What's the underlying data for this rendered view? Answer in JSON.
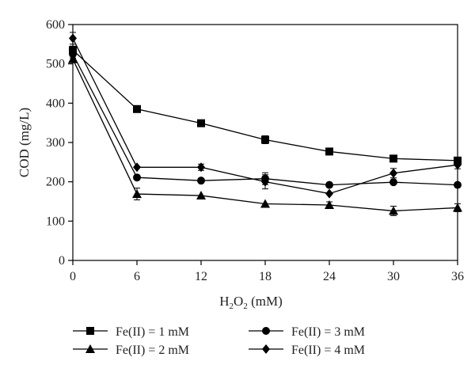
{
  "chart_data": {
    "type": "line",
    "xlabel": {
      "base": "H",
      "sub1": "2",
      "mid": "O",
      "sub2": "2",
      "tail": " (mM)"
    },
    "ylabel": "COD (mg/L)",
    "x": [
      0,
      6,
      12,
      18,
      24,
      30,
      36
    ],
    "xticks": [
      0,
      6,
      12,
      18,
      24,
      30,
      36
    ],
    "yticks": [
      0,
      100,
      200,
      300,
      400,
      500,
      600
    ],
    "xlim": [
      0,
      36
    ],
    "ylim": [
      0,
      600
    ],
    "grid": false,
    "legend_position": "bottom",
    "series": [
      {
        "name": "Fe(II) = 1 mM",
        "marker": "square",
        "values": [
          535,
          385,
          349,
          307,
          277,
          259,
          254
        ],
        "errors": [
          10,
          0,
          0,
          10,
          0,
          0,
          8
        ]
      },
      {
        "name": "Fe(II) = 2 mM",
        "marker": "triangle",
        "values": [
          512,
          169,
          165,
          144,
          141,
          126,
          134
        ],
        "errors": [
          8,
          15,
          0,
          0,
          8,
          12,
          10
        ]
      },
      {
        "name": "Fe(II) = 3 mM",
        "marker": "circle",
        "values": [
          525,
          211,
          203,
          208,
          192,
          199,
          192
        ],
        "errors": [
          10,
          0,
          0,
          15,
          0,
          0,
          0
        ]
      },
      {
        "name": "Fe(II) = 4 mM",
        "marker": "diamond",
        "values": [
          565,
          237,
          237,
          200,
          170,
          222,
          243
        ],
        "errors": [
          15,
          0,
          8,
          18,
          0,
          12,
          10
        ]
      }
    ],
    "colors": {
      "line": "#000000",
      "axis": "#000000"
    }
  }
}
